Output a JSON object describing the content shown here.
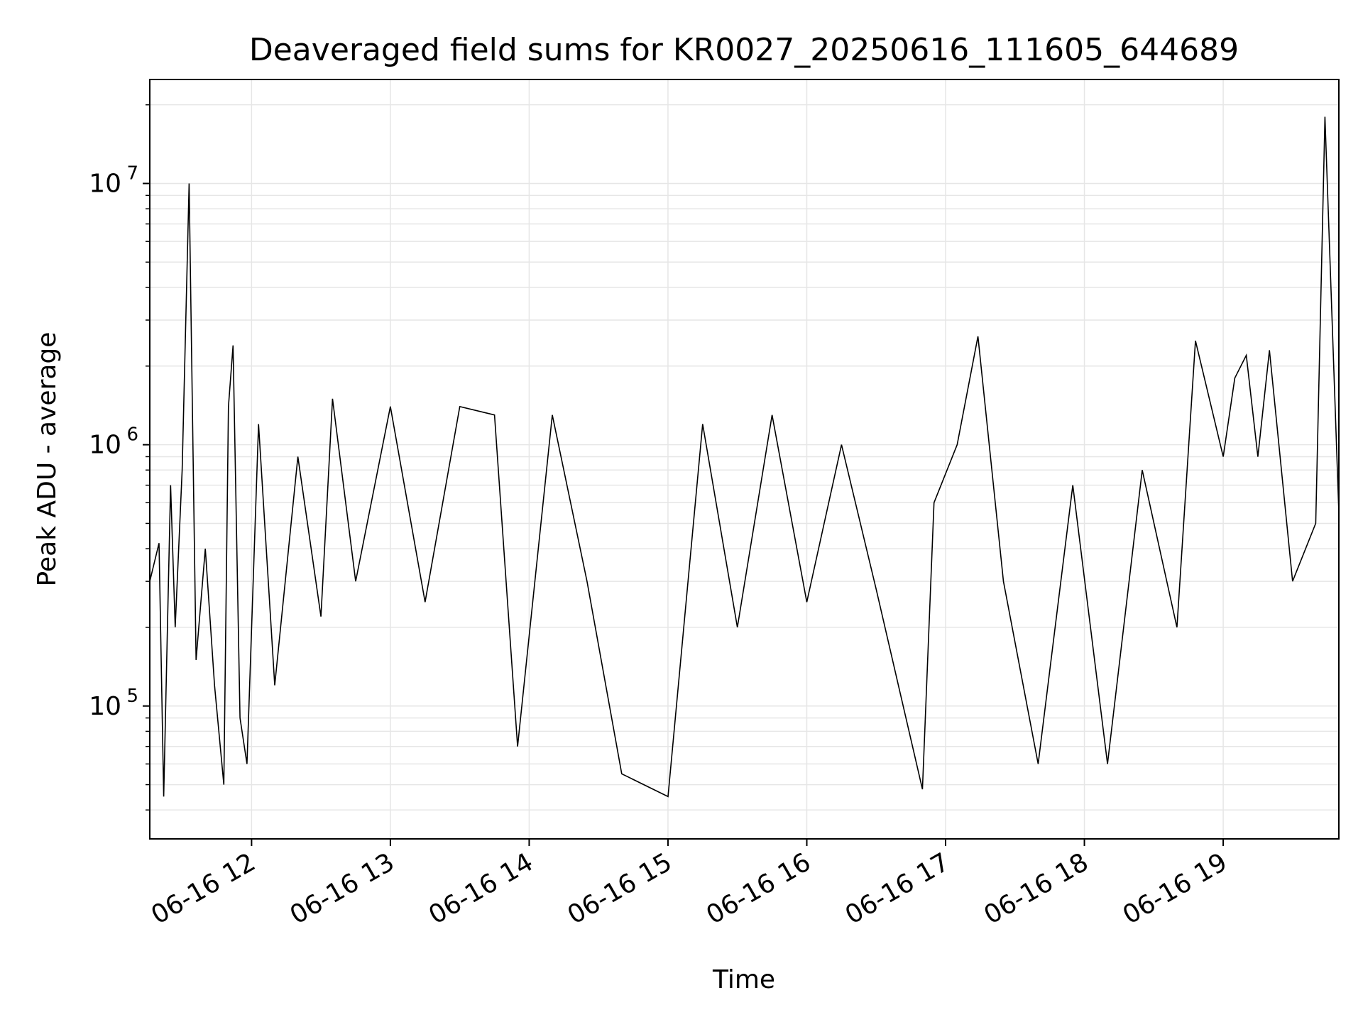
{
  "chart_data": {
    "type": "line",
    "title": "Deaveraged field sums for KR0027_20250616_111605_644689",
    "xlabel": "Time",
    "ylabel": "Peak ADU - average",
    "y_scale": "log",
    "ylim": [
      31000,
      25000000
    ],
    "xlim": [
      "2025-06-16 11:16",
      "2025-06-16 19:50"
    ],
    "grid": true,
    "line_color": "#000000",
    "grid_color": "#e6e6e6",
    "x_ticks": [
      {
        "label": "06-16 12",
        "t": "2025-06-16 12:00"
      },
      {
        "label": "06-16 13",
        "t": "2025-06-16 13:00"
      },
      {
        "label": "06-16 14",
        "t": "2025-06-16 14:00"
      },
      {
        "label": "06-16 15",
        "t": "2025-06-16 15:00"
      },
      {
        "label": "06-16 16",
        "t": "2025-06-16 16:00"
      },
      {
        "label": "06-16 17",
        "t": "2025-06-16 17:00"
      },
      {
        "label": "06-16 18",
        "t": "2025-06-16 18:00"
      },
      {
        "label": "06-16 19",
        "t": "2025-06-16 19:00"
      }
    ],
    "y_ticks": [
      {
        "base": "10",
        "exp": "5",
        "value": 100000
      },
      {
        "base": "10",
        "exp": "6",
        "value": 1000000
      },
      {
        "base": "10",
        "exp": "7",
        "value": 10000000
      }
    ],
    "series": [
      {
        "x": [
          "2025-06-16 11:16",
          "2025-06-16 11:20",
          "2025-06-16 11:22",
          "2025-06-16 11:25",
          "2025-06-16 11:27",
          "2025-06-16 11:30",
          "2025-06-16 11:33",
          "2025-06-16 11:36",
          "2025-06-16 11:40",
          "2025-06-16 11:44",
          "2025-06-16 11:48",
          "2025-06-16 11:50",
          "2025-06-16 11:52",
          "2025-06-16 11:55",
          "2025-06-16 11:58",
          "2025-06-16 12:03",
          "2025-06-16 12:10",
          "2025-06-16 12:20",
          "2025-06-16 12:30",
          "2025-06-16 12:35",
          "2025-06-16 12:45",
          "2025-06-16 13:00",
          "2025-06-16 13:15",
          "2025-06-16 13:30",
          "2025-06-16 13:45",
          "2025-06-16 13:55",
          "2025-06-16 14:10",
          "2025-06-16 14:25",
          "2025-06-16 14:40",
          "2025-06-16 15:00",
          "2025-06-16 15:15",
          "2025-06-16 15:30",
          "2025-06-16 15:45",
          "2025-06-16 16:00",
          "2025-06-16 16:15",
          "2025-06-16 16:30",
          "2025-06-16 16:50",
          "2025-06-16 16:55",
          "2025-06-16 17:05",
          "2025-06-16 17:14",
          "2025-06-16 17:25",
          "2025-06-16 17:40",
          "2025-06-16 17:55",
          "2025-06-16 18:10",
          "2025-06-16 18:25",
          "2025-06-16 18:40",
          "2025-06-16 18:48",
          "2025-06-16 19:00",
          "2025-06-16 19:05",
          "2025-06-16 19:10",
          "2025-06-16 19:15",
          "2025-06-16 19:20",
          "2025-06-16 19:30",
          "2025-06-16 19:40",
          "2025-06-16 19:44",
          "2025-06-16 19:50"
        ],
        "y": [
          300000,
          420000,
          45000,
          700000,
          200000,
          800000,
          10000000,
          150000,
          400000,
          120000,
          50000,
          1400000,
          2400000,
          90000,
          60000,
          1200000,
          120000,
          900000,
          220000,
          1500000,
          300000,
          1400000,
          250000,
          1400000,
          1300000,
          70000,
          1300000,
          300000,
          55000,
          45000,
          1200000,
          200000,
          1300000,
          250000,
          1000000,
          280000,
          48000,
          600000,
          1000000,
          2600000,
          300000,
          60000,
          700000,
          60000,
          800000,
          200000,
          2500000,
          900000,
          1800000,
          2200000,
          900000,
          2300000,
          300000,
          500000,
          18000000,
          550000
        ]
      }
    ]
  }
}
